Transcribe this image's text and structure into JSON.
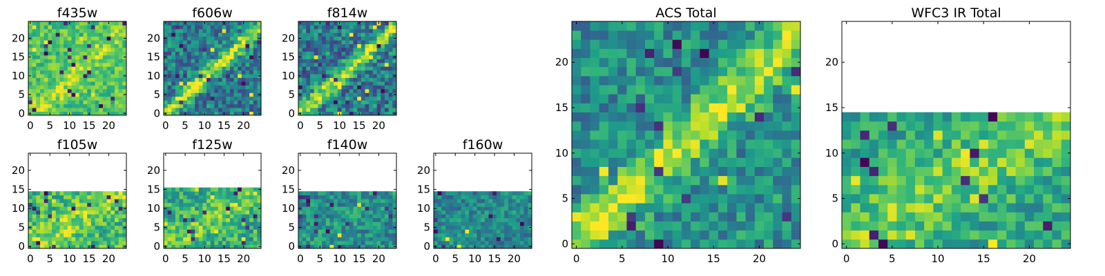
{
  "chart_data": [
    {
      "type": "heatmap",
      "title": "f435w",
      "colormap": "viridis",
      "grid": false,
      "rows": 25,
      "cols": 25,
      "data_rows": 25,
      "xlim": [
        0,
        24
      ],
      "ylim": [
        0,
        24
      ],
      "xticks": [
        "0",
        "5",
        "10",
        "15",
        "20"
      ],
      "yticks": [
        "0",
        "5",
        "10",
        "15",
        "20"
      ],
      "pattern": {
        "base": 0.72,
        "base_noise": 0.16,
        "streak": 0.15,
        "streak_slope": 0.95,
        "streak_offset": 0,
        "streak_width": 2.4,
        "seed": 11
      }
    },
    {
      "type": "heatmap",
      "title": "f606w",
      "colormap": "viridis",
      "grid": false,
      "rows": 25,
      "cols": 25,
      "data_rows": 25,
      "xlim": [
        0,
        24
      ],
      "ylim": [
        0,
        24
      ],
      "xticks": [
        "0",
        "5",
        "10",
        "15",
        "20"
      ],
      "yticks": [
        "0",
        "5",
        "10",
        "15",
        "20"
      ],
      "pattern": {
        "base": 0.42,
        "base_noise": 0.22,
        "streak": 0.5,
        "streak_slope": 0.95,
        "streak_offset": 0,
        "streak_width": 1.8,
        "seed": 23
      }
    },
    {
      "type": "heatmap",
      "title": "f814w",
      "colormap": "viridis",
      "grid": false,
      "rows": 25,
      "cols": 25,
      "data_rows": 25,
      "xlim": [
        0,
        24
      ],
      "ylim": [
        0,
        24
      ],
      "xticks": [
        "0",
        "5",
        "10",
        "15",
        "20"
      ],
      "yticks": [
        "0",
        "5",
        "10",
        "15",
        "20"
      ],
      "pattern": {
        "base": 0.42,
        "base_noise": 0.24,
        "streak": 0.5,
        "streak_slope": 0.95,
        "streak_offset": 0,
        "streak_width": 1.8,
        "seed": 37
      }
    },
    {
      "type": "heatmap",
      "title": "f105w",
      "colormap": "viridis",
      "grid": false,
      "rows": 25,
      "cols": 25,
      "data_rows": 15,
      "xlim": [
        0,
        24
      ],
      "ylim": [
        0,
        24
      ],
      "xticks": [
        "0",
        "5",
        "10",
        "15",
        "20"
      ],
      "yticks": [
        "0",
        "5",
        "10",
        "15",
        "20"
      ],
      "pattern": {
        "base": 0.68,
        "base_noise": 0.2,
        "streak": 0.15,
        "streak_slope": 0.6,
        "streak_offset": 0,
        "streak_width": 3,
        "seed": 41
      }
    },
    {
      "type": "heatmap",
      "title": "f125w",
      "colormap": "viridis",
      "grid": false,
      "rows": 25,
      "cols": 25,
      "data_rows": 16,
      "xlim": [
        0,
        24
      ],
      "ylim": [
        0,
        24
      ],
      "xticks": [
        "0",
        "5",
        "10",
        "15",
        "20"
      ],
      "yticks": [
        "0",
        "5",
        "10",
        "15",
        "20"
      ],
      "pattern": {
        "base": 0.62,
        "base_noise": 0.2,
        "streak": 0.15,
        "streak_slope": 0.6,
        "streak_offset": 0,
        "streak_width": 3,
        "seed": 53
      }
    },
    {
      "type": "heatmap",
      "title": "f140w",
      "colormap": "viridis",
      "grid": false,
      "rows": 25,
      "cols": 25,
      "data_rows": 15,
      "xlim": [
        0,
        24
      ],
      "ylim": [
        0,
        24
      ],
      "xticks": [
        "0",
        "5",
        "10",
        "15",
        "20"
      ],
      "yticks": [
        "0",
        "5",
        "10",
        "15",
        "20"
      ],
      "pattern": {
        "base": 0.48,
        "base_noise": 0.18,
        "streak": 0.05,
        "streak_slope": 0.6,
        "streak_offset": 0,
        "streak_width": 3,
        "seed": 67
      }
    },
    {
      "type": "heatmap",
      "title": "f160w",
      "colormap": "viridis",
      "grid": false,
      "rows": 25,
      "cols": 25,
      "data_rows": 15,
      "xlim": [
        0,
        24
      ],
      "ylim": [
        0,
        24
      ],
      "xticks": [
        "0",
        "5",
        "10",
        "15",
        "20"
      ],
      "yticks": [
        "0",
        "5",
        "10",
        "15",
        "20"
      ],
      "pattern": {
        "base": 0.45,
        "base_noise": 0.16,
        "streak": 0.05,
        "streak_slope": 0.6,
        "streak_offset": 0,
        "streak_width": 3,
        "seed": 79
      }
    },
    {
      "type": "heatmap",
      "title": "ACS Total",
      "colormap": "viridis",
      "grid": false,
      "rows": 25,
      "cols": 25,
      "data_rows": 25,
      "xlim": [
        0,
        24
      ],
      "ylim": [
        0,
        24
      ],
      "xticks": [
        "0",
        "5",
        "10",
        "15",
        "20"
      ],
      "yticks": [
        "0",
        "5",
        "10",
        "15",
        "20"
      ],
      "pattern": {
        "base": 0.5,
        "base_noise": 0.2,
        "streak": 0.42,
        "streak_slope": 0.95,
        "streak_offset": 0,
        "streak_width": 2.2,
        "seed": 97
      }
    },
    {
      "type": "heatmap",
      "title": "WFC3 IR Total",
      "colormap": "viridis",
      "grid": false,
      "rows": 25,
      "cols": 25,
      "data_rows": 15,
      "xlim": [
        0,
        24
      ],
      "ylim": [
        0,
        24
      ],
      "xticks": [
        "0",
        "5",
        "10",
        "15",
        "20"
      ],
      "yticks": [
        "0",
        "5",
        "10",
        "15",
        "20"
      ],
      "pattern": {
        "base": 0.6,
        "base_noise": 0.18,
        "streak": 0.2,
        "streak_slope": 0.6,
        "streak_offset": 0,
        "streak_width": 3,
        "seed": 101
      }
    }
  ]
}
